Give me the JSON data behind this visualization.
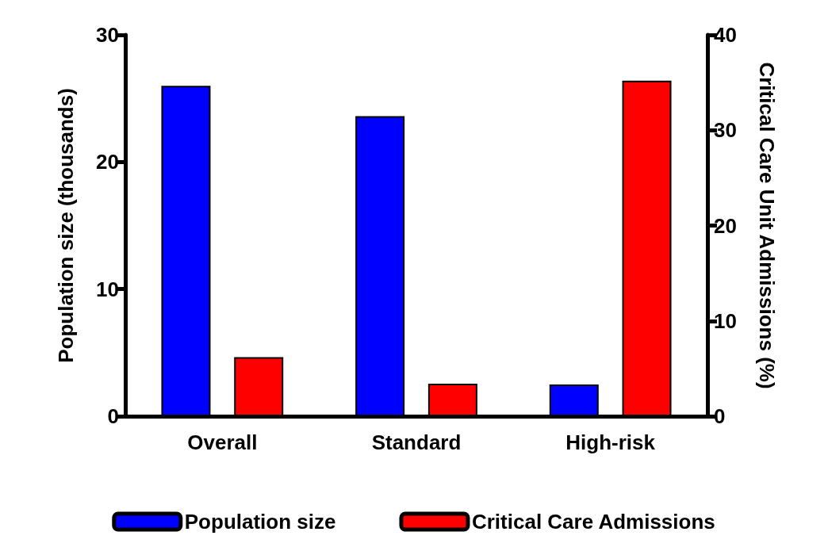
{
  "chart_data": {
    "type": "bar",
    "categories": [
      "Overall",
      "Standard",
      "High-risk"
    ],
    "series": [
      {
        "name": "Population size",
        "color": "#0000ff",
        "values": [
          26.0,
          23.6,
          2.5
        ]
      },
      {
        "name": "Critical Care Admissions",
        "color": "#ff0000",
        "values": [
          6.2,
          3.4,
          35.2
        ],
        "axis": "y2"
      }
    ],
    "ylabel": "Population size (thousands)",
    "y2label": "Critical Care Unit Admissions (%)",
    "ylim": [
      0,
      30
    ],
    "yticks": [
      0,
      10,
      20,
      30
    ],
    "y2lim": [
      0,
      40
    ],
    "y2ticks": [
      0,
      10,
      20,
      30,
      40
    ],
    "grid": false,
    "legend": "bottom"
  }
}
